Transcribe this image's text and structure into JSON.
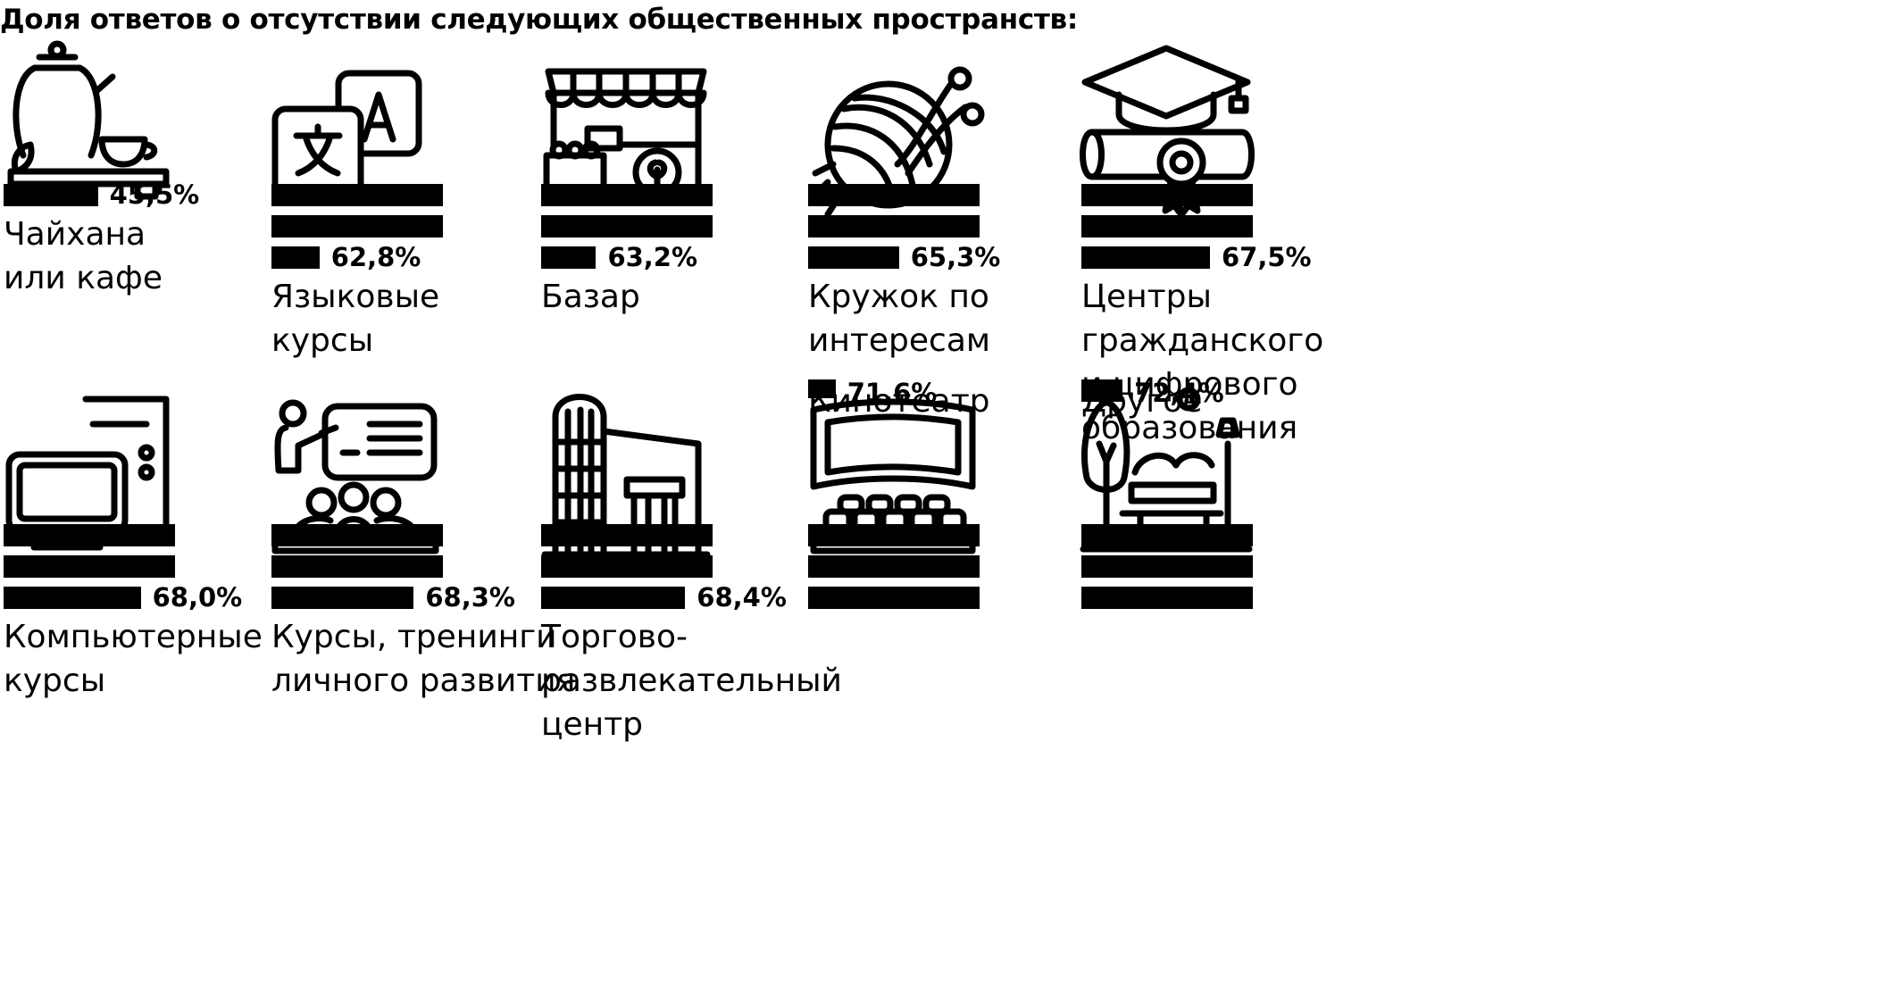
{
  "title": "Доля ответов о отсутствии следующих общественных пространств:",
  "colors": {
    "bar": "#000000",
    "background": "#ffffff",
    "text": "#000000"
  },
  "chart_data": {
    "type": "bar",
    "unit": "%",
    "scale_note": "each full bar = 10%, partial bar = remainder",
    "categories": [
      "Чайхана\nили кафе",
      "Языковые\nкурсы",
      "Базар",
      "Кружок по\nинтересам",
      "Центры гражданского\nи цифрового образования",
      "Компьютерные\nкурсы",
      "Курсы, тренинги\nличного развития",
      "Торгово-\nразвлекательный\nцентр",
      "Кинотеатр",
      "Другое"
    ],
    "values": [
      45.5,
      62.8,
      63.2,
      65.3,
      67.5,
      68.0,
      68.3,
      68.4,
      71.6,
      72.4
    ],
    "value_labels": [
      "45,5%",
      "62,8%",
      "63,2%",
      "65,3%",
      "67,5%",
      "68,0%",
      "68,3%",
      "68,4%",
      "71,6%",
      "72,4%"
    ],
    "icons": [
      "teapot-icon",
      "language-icon",
      "market-stall-icon",
      "yarn-ball-icon",
      "graduation-diploma-icon",
      "computer-icon",
      "training-presentation-icon",
      "mall-building-icon",
      "cinema-icon",
      "park-bench-icon"
    ]
  }
}
